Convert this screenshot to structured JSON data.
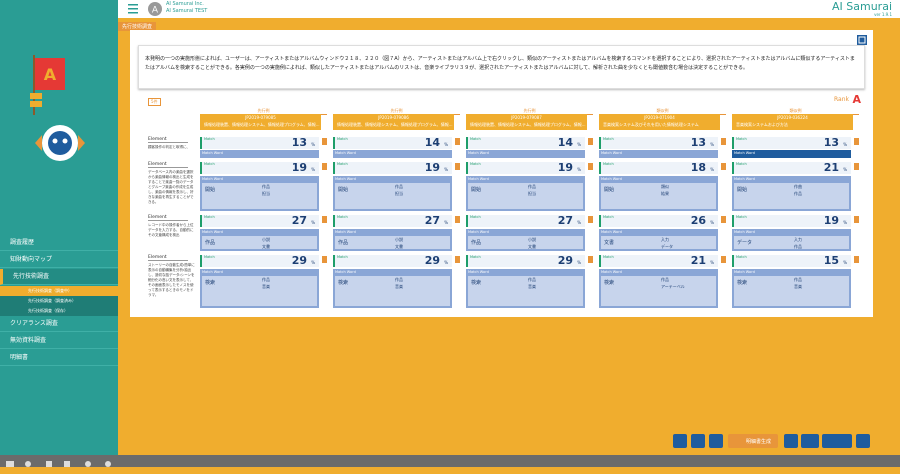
{
  "header": {
    "company": "AI Samurai Inc.",
    "account": "AI Samurai TEST",
    "brand": "AI Samurai",
    "version": "ver 1.9.1",
    "tab": "先行技術調査"
  },
  "sidebar": {
    "menu": [
      "調査履歴",
      "知財動向マップ",
      "先行技術調査",
      "クリアランス調査",
      "無効資料調査",
      "明細書"
    ],
    "submenu": [
      "先行技術調査（調査中）",
      "先行技術調査（調査済み）",
      "先行技術調査（保存）"
    ]
  },
  "query": "本発明の一つの実施形態によれば、ユーザーは、アーティストまたはアルバムウィンドウ２１８、２２０（図７A）から、アーティストまたはアルバム上で右クリックし、類似のアーティストまたはアルバムを検索するコマンドを選択することにより、選択されたアーティストまたはアルバムに類似するアーティストまたはアルバムを検索することができる。各実例の一つの実施例によれば、類似したアーティストまたはアルバムのリストは、音楽ライブラリ３９が、選択されたアーティストまたはアルバムに対して、解析された曲を少なくとも閾値数含む場合は決定することができる。",
  "rank": {
    "label": "Rank",
    "value": "A"
  },
  "count_label": "5件",
  "match_label": "Match",
  "match_word_label": "Match Word",
  "score_unit": "%",
  "documents": [
    {
      "heading": "先行例",
      "number": "JP2019-079085",
      "title": "情報処理装置、情報処理システム、情報処理プログラム、情報..."
    },
    {
      "heading": "先行例",
      "number": "JP2019-079086",
      "title": "情報処理装置、情報処理システム、情報処理プログラム、情報..."
    },
    {
      "heading": "先行例",
      "number": "JP2019-079087",
      "title": "情報処理装置、情報処理システム、情報処理プログラム、情報..."
    },
    {
      "heading": "類似例",
      "number": "JP2019-071904",
      "title": "音楽検索システム及びそれを用いた情報処理システム"
    },
    {
      "heading": "類似例",
      "number": "JP2019-036224",
      "title": "音楽検索システムおよび方法"
    }
  ],
  "elements": [
    {
      "label": "Element",
      "description": "顧客操作の判定と取得に、",
      "scores": [
        13,
        14,
        14,
        13,
        13
      ],
      "words": null
    },
    {
      "label": "Element",
      "description": "データベース内の楽曲を選択から楽曲情報の検出と生成をすることで楽曲一覧のデータとグループ楽曲の作成を生成し、楽曲の情報を表示し、好きな楽曲を再生することができる。",
      "scores": [
        19,
        19,
        19,
        18,
        21
      ],
      "words": [
        [
          "開始",
          "作品",
          "担当"
        ],
        [
          "開始",
          "作品",
          "担当"
        ],
        [
          "開始",
          "作品",
          "担当"
        ],
        [
          "開始",
          "類似",
          "結果"
        ],
        [
          "開始",
          "作曲",
          "作品"
        ]
      ]
    },
    {
      "label": "Element",
      "description": "レコード中の操作者から上位データを入力する、自動的にその文章構成を検出",
      "scores": [
        27,
        27,
        27,
        26,
        19
      ],
      "words": [
        [
          "作品",
          "小説",
          "文書"
        ],
        [
          "作品",
          "小説",
          "文書"
        ],
        [
          "作品",
          "小説",
          "文書"
        ],
        [
          "文書",
          "入力",
          "データ"
        ],
        [
          "データ",
          "入力",
          "作品"
        ]
      ]
    },
    {
      "label": "Element",
      "description": "ストーリーの自動生成・簡単に表示の自動編集を分析・抽出し、適切な話データ・シーンを細分化の高い文を表示して、その画面表示したモノスを使って表示するときのモノをドラマ。",
      "scores": [
        29,
        29,
        29,
        21,
        15
      ],
      "words": [
        [
          "検索",
          "作品",
          "音楽"
        ],
        [
          "検索",
          "作品",
          "音楽"
        ],
        [
          "検索",
          "作品",
          "音楽"
        ],
        [
          "検索",
          "作品",
          "アーテーベル"
        ],
        [
          "検索",
          "作品",
          "音楽"
        ]
      ]
    }
  ],
  "toolbar": {
    "generate": "明細書生成"
  }
}
